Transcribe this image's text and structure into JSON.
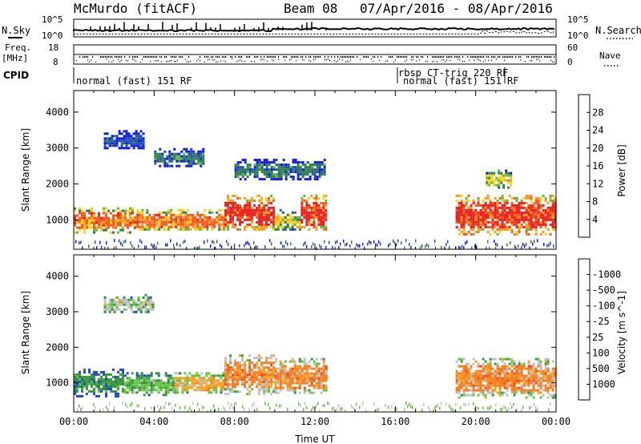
{
  "header": {
    "station": "McMurdo (fitACF)",
    "beam": "Beam 08",
    "date_range": "07/Apr/2016 - 08/Apr/2016"
  },
  "top_panel": {
    "left_label": "N.Sky",
    "right_label": "N.Search",
    "left_ticks": [
      "10^5",
      "10^0"
    ],
    "right_ticks": [
      "10^5",
      "10^0"
    ]
  },
  "freq_panel": {
    "left_label_1": "Freq.",
    "left_label_2": "[MHz]",
    "left_ticks": [
      "18",
      "8"
    ],
    "right_label": "Nave",
    "right_ticks": [
      "60",
      "0"
    ]
  },
  "cpid": {
    "label": "CPID",
    "segments": [
      {
        "text": "normal (fast) 151 RF"
      },
      {
        "text": "rbsp CT-trig 220 RF"
      },
      {
        "text": "normal (fast) 151 RF"
      }
    ]
  },
  "chart_data": [
    {
      "type": "heatmap",
      "title": "",
      "xlabel": "",
      "ylabel": "Slant Range [km]",
      "x_ticks": [
        "00:00",
        "04:00",
        "08:00",
        "12:00",
        "16:00",
        "20:00",
        "00:00"
      ],
      "xlim": [
        0,
        24
      ],
      "y_ticks": [
        "1000",
        "2000",
        "3000",
        "4000"
      ],
      "ylim": [
        180,
        4600
      ],
      "colorbar": {
        "label": "Power [dB]",
        "ticks": [
          "4",
          "8",
          "12",
          "16",
          "20",
          "24",
          "28"
        ],
        "range": [
          0,
          32
        ],
        "colors": [
          "#0f17e6",
          "#1f51a8",
          "#2e7d4a",
          "#5cb83f",
          "#f5d21e",
          "#f79a1f",
          "#f2571e",
          "#e61e1e"
        ]
      },
      "echo_regions": [
        {
          "t0": 0.0,
          "t1": 3.0,
          "r0": 650,
          "r1": 1350,
          "level": 6
        },
        {
          "t0": 3.0,
          "t1": 7.5,
          "r0": 700,
          "r1": 1300,
          "level": 6
        },
        {
          "t0": 7.5,
          "t1": 10.0,
          "r0": 700,
          "r1": 1700,
          "level": 7
        },
        {
          "t0": 10.0,
          "t1": 11.3,
          "r0": 700,
          "r1": 1300,
          "level": 4
        },
        {
          "t0": 11.3,
          "t1": 12.6,
          "r0": 700,
          "r1": 1700,
          "level": 7
        },
        {
          "t0": 1.5,
          "t1": 3.5,
          "r0": 3000,
          "r1": 3500,
          "level": 1
        },
        {
          "t0": 4.0,
          "t1": 6.5,
          "r0": 2500,
          "r1": 3000,
          "level": 2
        },
        {
          "t0": 8.0,
          "t1": 12.5,
          "r0": 2100,
          "r1": 2700,
          "level": 2
        },
        {
          "t0": 19.0,
          "t1": 24.0,
          "r0": 600,
          "r1": 1700,
          "level": 7
        },
        {
          "t0": 20.5,
          "t1": 21.8,
          "r0": 1900,
          "r1": 2400,
          "level": 4
        }
      ]
    },
    {
      "type": "heatmap",
      "title": "",
      "xlabel": "Time UT",
      "ylabel": "Slant Range [km]",
      "x_ticks": [
        "00:00",
        "04:00",
        "08:00",
        "12:00",
        "16:00",
        "20:00",
        "00:00"
      ],
      "xlim": [
        0,
        24
      ],
      "y_ticks": [
        "1000",
        "2000",
        "3000",
        "4000"
      ],
      "ylim": [
        180,
        4600
      ],
      "colorbar": {
        "label": "Velocity [m s^-1]",
        "ticks": [
          "1000",
          "500",
          "100",
          "25",
          "-25",
          "-100",
          "-500",
          "-1000"
        ],
        "range": [
          -1200,
          1200
        ],
        "colors": [
          "#1e46d2",
          "#2e7d4a",
          "#3a9a3a",
          "#61c43c",
          "#c0c0c0",
          "#f5a01e",
          "#f57a1e",
          "#ee4a1e",
          "#e61e1e"
        ]
      },
      "echo_regions": [
        {
          "t0": 0.0,
          "t1": 2.5,
          "r0": 650,
          "r1": 1400,
          "level": 2
        },
        {
          "t0": 2.5,
          "t1": 5.0,
          "r0": 650,
          "r1": 1300,
          "level": 3
        },
        {
          "t0": 5.0,
          "t1": 7.5,
          "r0": 700,
          "r1": 1300,
          "level": 5
        },
        {
          "t0": 7.5,
          "t1": 10.0,
          "r0": 700,
          "r1": 1800,
          "level": 6
        },
        {
          "t0": 10.0,
          "t1": 12.6,
          "r0": 700,
          "r1": 1700,
          "level": 6
        },
        {
          "t0": 1.5,
          "t1": 4.0,
          "r0": 3000,
          "r1": 3500,
          "level": 4
        },
        {
          "t0": 19.0,
          "t1": 24.0,
          "r0": 600,
          "r1": 1700,
          "level": 6
        }
      ]
    }
  ]
}
